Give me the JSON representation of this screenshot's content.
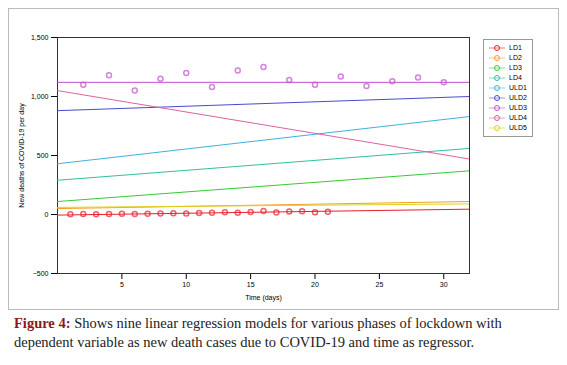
{
  "chart_data": {
    "type": "line",
    "caption_label": "Figure 4:",
    "caption": "Shows nine linear regression models for various phases of lockdown with dependent variable as new death cases due to COVID-19 and time as regressor.",
    "x_label": "Time (days)",
    "y_label": "New deaths of COVID-19 per day",
    "xlim": [
      0,
      32
    ],
    "xticks": [
      5,
      10,
      15,
      20,
      25,
      30
    ],
    "ylim": [
      -500,
      1500
    ],
    "yticks": [
      -500,
      0,
      500,
      1000,
      1500
    ],
    "legend": "right",
    "series": [
      {
        "name": "LD1",
        "color": "#e8202a",
        "marker": "circle",
        "fit_x": [
          0,
          32
        ],
        "fit": [
          -5,
          45
        ],
        "x": [
          1,
          2,
          3,
          4,
          5,
          6,
          7,
          8,
          9,
          10,
          11,
          12,
          13,
          14,
          15,
          16,
          17,
          18,
          19,
          20,
          21
        ],
        "values": [
          2,
          4,
          3,
          5,
          6,
          4,
          7,
          8,
          10,
          9,
          12,
          14,
          20,
          15,
          22,
          30,
          18,
          25,
          28,
          20,
          24
        ]
      },
      {
        "name": "LD2",
        "color": "#f0a020",
        "marker": "circle",
        "fit_x": [
          0,
          32
        ],
        "fit": [
          50,
          110
        ]
      },
      {
        "name": "LD3",
        "color": "#33cc33",
        "marker": "circle",
        "fit_x": [
          0,
          32
        ],
        "fit": [
          110,
          370
        ]
      },
      {
        "name": "LD4",
        "color": "#30c0a0",
        "marker": "circle",
        "fit_x": [
          0,
          32
        ],
        "fit": [
          290,
          560
        ]
      },
      {
        "name": "ULD1",
        "color": "#40b0e0",
        "marker": "circle",
        "fit_x": [
          0,
          32
        ],
        "fit": [
          430,
          830
        ]
      },
      {
        "name": "ULD2",
        "color": "#4a4ad0",
        "marker": "circle",
        "fit_x": [
          0,
          32
        ],
        "fit": [
          880,
          1000
        ]
      },
      {
        "name": "ULD3",
        "color": "#c050d0",
        "marker": "circle",
        "fit_x": [
          0,
          32
        ],
        "fit": [
          1120,
          1120
        ],
        "x": [
          2,
          4,
          6,
          8,
          10,
          12,
          14,
          16,
          18,
          20,
          22,
          24,
          26,
          28,
          30
        ],
        "values": [
          1100,
          1180,
          1050,
          1150,
          1200,
          1080,
          1220,
          1250,
          1140,
          1100,
          1170,
          1090,
          1130,
          1160,
          1120
        ]
      },
      {
        "name": "ULD4",
        "color": "#e060a0",
        "marker": "circle",
        "fit_x": [
          0,
          32
        ],
        "fit": [
          1050,
          470
        ]
      },
      {
        "name": "ULD5",
        "color": "#e0d020",
        "marker": "circle",
        "fit_x": [
          0,
          32
        ],
        "fit": [
          60,
          90
        ]
      }
    ]
  }
}
